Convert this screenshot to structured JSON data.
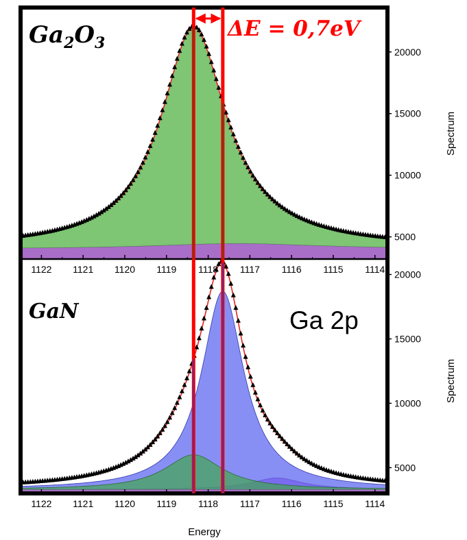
{
  "chart_data": [
    {
      "type": "area",
      "title": "Ga2O3",
      "xlabel": "",
      "ylabel": "Spectrum",
      "x_reversed": true,
      "xlim": [
        1113.7,
        1122.5
      ],
      "ylim": [
        3200,
        23600
      ],
      "xticks": [
        1122,
        1121,
        1120,
        1119,
        1118,
        1117,
        1116,
        1115,
        1114
      ],
      "yticks": [
        5000,
        10000,
        15000,
        20000
      ],
      "peak_center": 1118.35,
      "peak_max": 21900,
      "components": [
        {
          "color": "#4caf3e",
          "center": 1118.35,
          "height": 17600,
          "width": 0.95
        },
        {
          "color": "#a05ec2",
          "baseline": 4000,
          "bump_center": 1117.3,
          "bump_height": 450,
          "bump_width": 2.5
        }
      ],
      "fit_color": "#e4231f",
      "marker_lines": [
        1118.35,
        1117.65
      ],
      "annotation": {
        "text": "ΔE = 0,7eV",
        "arrow_from": 1118.35,
        "arrow_to": 1117.65,
        "color": "#ff0000"
      }
    },
    {
      "type": "area",
      "title": "GaN",
      "xlabel": "Energy",
      "ylabel": "Spectrum",
      "x_reversed": true,
      "xlim": [
        1113.7,
        1122.5
      ],
      "ylim": [
        3000,
        21200
      ],
      "xticks": [
        1122,
        1121,
        1120,
        1119,
        1118,
        1117,
        1116,
        1115,
        1114
      ],
      "yticks": [
        5000,
        10000,
        15000,
        20000
      ],
      "peak_center": 1117.65,
      "peak_max": 20800,
      "components": [
        {
          "color": "#5a64f0",
          "center": 1117.65,
          "height": 15400,
          "width": 0.62
        },
        {
          "color": "#3fa64a",
          "center": 1118.35,
          "height": 2700,
          "width": 0.85
        },
        {
          "color": "#b556e8",
          "center": 1116.35,
          "height": 900,
          "width": 0.75
        },
        {
          "color": "#a05ec2",
          "baseline": 3300
        }
      ],
      "fit_color": "#e4231f",
      "marker_lines": [
        1118.35,
        1117.65
      ],
      "annotation": {
        "text": "Ga 2p"
      }
    }
  ]
}
